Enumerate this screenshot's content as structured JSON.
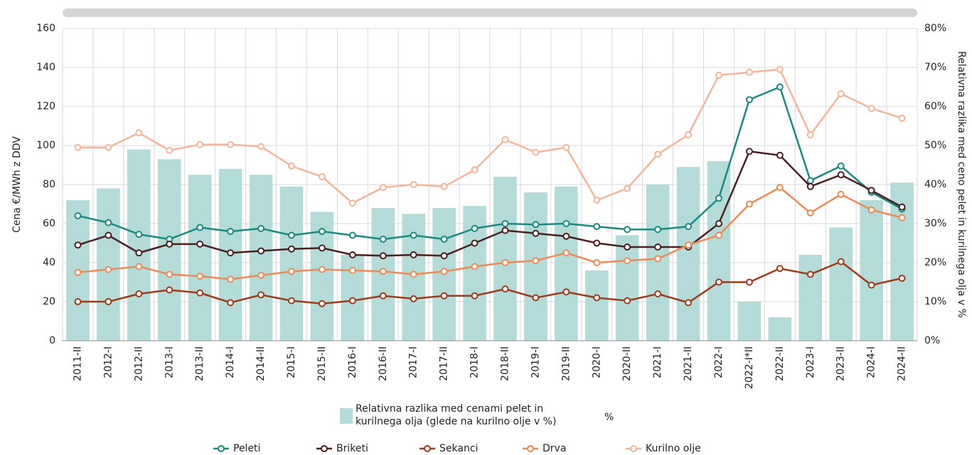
{
  "chart_data": {
    "type": "combo",
    "y_label": "Cena €/MWh z DDV",
    "y2_label": "Relativna razlika med ceno pelet in kurilnega olja v %",
    "bar_unit": "%",
    "categories": [
      "2011-II",
      "2012-I",
      "2012-II",
      "2013-I",
      "2013-II",
      "2014-I",
      "2014-II",
      "2015-I",
      "2015-II",
      "2016-I",
      "2016-II",
      "2017-I",
      "2017-II",
      "2018-I",
      "2018-II",
      "2019-I",
      "2019-II",
      "2020-I",
      "2020-II",
      "2021-I",
      "2021-II",
      "2022-I",
      "2022-I*II",
      "2022-II",
      "2023-I",
      "2023-II",
      "2024-I",
      "2024-II"
    ],
    "ylim": [
      0,
      160
    ],
    "yticks": [
      0,
      20,
      40,
      60,
      80,
      100,
      120,
      140,
      160
    ],
    "y2lim": [
      0,
      80
    ],
    "y2ticks": [
      {
        "value": 0,
        "label": "0%"
      },
      {
        "value": 10,
        "label": "10%"
      },
      {
        "value": 20,
        "label": "20%"
      },
      {
        "value": 30,
        "label": "30%"
      },
      {
        "value": 40,
        "label": "40%"
      },
      {
        "value": 50,
        "label": "50%"
      },
      {
        "value": 60,
        "label": "60%"
      },
      {
        "value": 70,
        "label": "70%"
      },
      {
        "value": 80,
        "label": "80%"
      }
    ],
    "grid": true,
    "series": [
      {
        "name": "Relativna razlika med cenami pelet in kurilnega olja (glede na kurilno olje v %)",
        "type": "bar",
        "axis": "y2",
        "color": "#b3dcd9",
        "values": [
          36,
          39,
          49,
          46.5,
          42.5,
          44,
          42.5,
          39.5,
          33,
          22,
          34,
          32.5,
          34,
          34.5,
          42,
          38,
          39.5,
          18,
          27,
          40,
          44.5,
          46,
          10,
          6,
          22,
          29,
          36,
          40.5
        ]
      },
      {
        "name": "Peleti",
        "type": "line",
        "color": "#1a8a80",
        "values": [
          64,
          60.5,
          54.5,
          52,
          58,
          56,
          57.5,
          54,
          56,
          54,
          52,
          54,
          52,
          57.5,
          60,
          59.5,
          60,
          58.5,
          57,
          57,
          58.5,
          73,
          123.5,
          130,
          82,
          89.5,
          76,
          67.5
        ]
      },
      {
        "name": "Briketi",
        "type": "line",
        "color": "#4a1f1f",
        "values": [
          49,
          54,
          45,
          49.5,
          49.5,
          45,
          46,
          47,
          47.5,
          44,
          43.5,
          44,
          43.5,
          50,
          56.5,
          55,
          53.5,
          50,
          48,
          48,
          48,
          60,
          97,
          95,
          79,
          85,
          77,
          68.5
        ]
      },
      {
        "name": "Sekanci",
        "type": "line",
        "color": "#9e3a1a",
        "values": [
          20,
          20,
          24,
          26,
          24.5,
          19.5,
          23.5,
          20.5,
          19,
          20.5,
          23,
          21.5,
          23,
          23,
          26.5,
          22,
          25,
          22,
          20.5,
          24,
          19.5,
          30,
          30,
          37,
          34,
          40.5,
          28.5,
          32
        ]
      },
      {
        "name": "Drva",
        "type": "line",
        "color": "#ee8a55",
        "values": [
          35,
          36.5,
          38,
          34,
          33,
          31.5,
          33.5,
          35.5,
          36.5,
          36,
          35.5,
          34,
          35.5,
          38,
          40,
          41,
          45,
          40,
          41,
          42,
          49,
          54,
          70,
          78.5,
          65.5,
          75,
          67,
          63
        ]
      },
      {
        "name": "Kurilno olje",
        "type": "line",
        "color": "#f5b59a",
        "values": [
          99,
          99,
          106.5,
          97.5,
          100.5,
          100.5,
          99.5,
          89.5,
          84,
          70.5,
          78.5,
          80,
          79,
          87.5,
          103,
          96.5,
          99,
          72,
          78,
          95.5,
          105.5,
          136,
          137.5,
          139,
          105.5,
          126.5,
          119,
          114
        ]
      }
    ]
  }
}
